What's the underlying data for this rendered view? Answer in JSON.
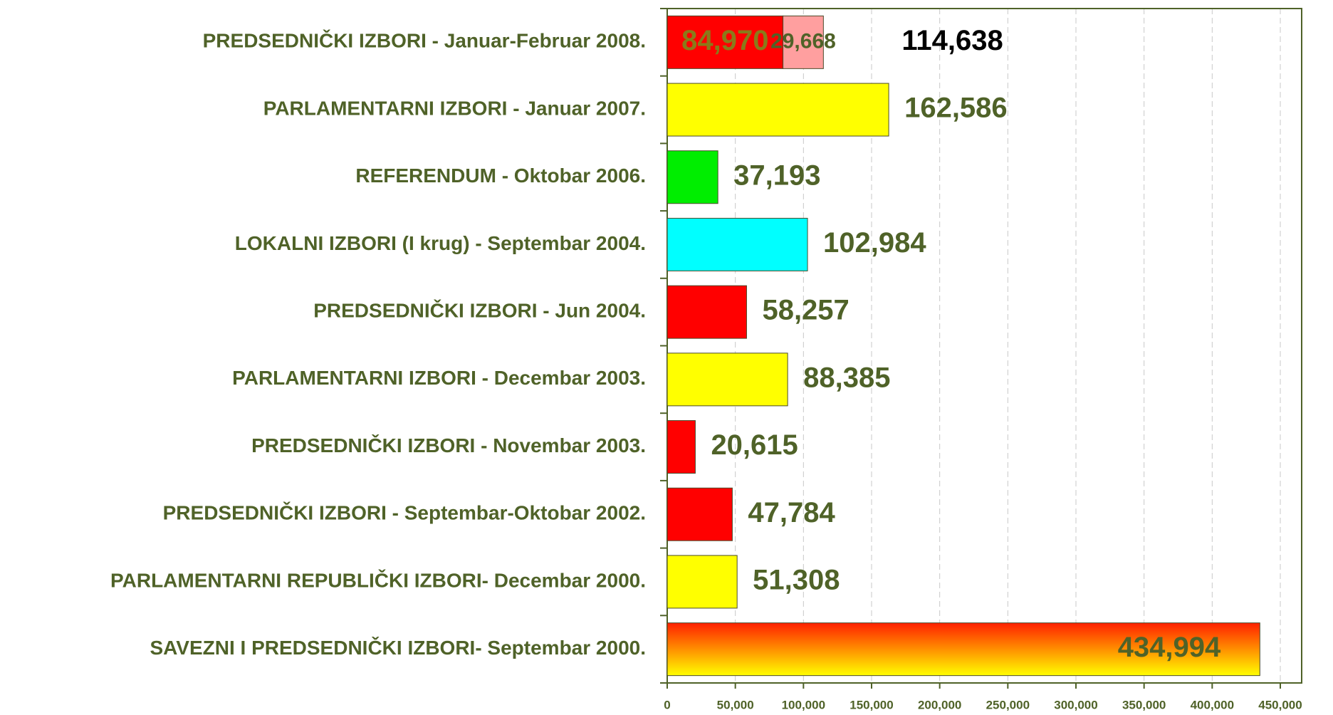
{
  "chart_data": {
    "type": "bar",
    "orientation": "horizontal",
    "stacked": true,
    "categories": [
      "PREDSEDNIČKI IZBORI - Januar-Februar 2008.",
      "PARLAMENTARNI IZBORI - Januar 2007.",
      "REFERENDUM - Oktobar 2006.",
      "LOKALNI IZBORI (I krug) - Septembar 2004.",
      "PREDSEDNIČKI IZBORI - Jun 2004.",
      "PARLAMENTARNI IZBORI - Decembar 2003.",
      "PREDSEDNIČKI IZBORI - Novembar 2003.",
      "PREDSEDNIČKI IZBORI - Septembar-Oktobar 2002.",
      "PARLAMENTARNI REPUBLIČKI IZBORI- Decembar 2000.",
      "SAVEZNI I PREDSEDNIČKI IZBORI- Septembar 2000."
    ],
    "series": [
      {
        "values": [
          84970,
          162586,
          37193,
          102984,
          58257,
          88385,
          20615,
          47784,
          51308,
          434994
        ],
        "value_labels": [
          "84,970",
          "162,586",
          "37,193",
          "102,984",
          "58,257",
          "88,385",
          "20,615",
          "47,784",
          "51,308",
          "434,994"
        ],
        "colors": [
          "#ff0000",
          "#ffff00",
          "#00ee00",
          "#00ffff",
          "#ff0000",
          "#ffff00",
          "#ff0000",
          "#ff0000",
          "#ffff00",
          [
            "#ff2000",
            "#ffff00"
          ]
        ]
      },
      {
        "values": [
          29668,
          null,
          null,
          null,
          null,
          null,
          null,
          null,
          null,
          null
        ],
        "value_labels": [
          "29,668",
          null,
          null,
          null,
          null,
          null,
          null,
          null,
          null,
          null
        ],
        "color": "#ff9f9f"
      }
    ],
    "totals": [
      114638,
      null,
      null,
      null,
      null,
      null,
      null,
      null,
      null,
      null
    ],
    "total_labels": [
      "114,638",
      null,
      null,
      null,
      null,
      null,
      null,
      null,
      null,
      null
    ],
    "xlim": [
      0,
      450000
    ],
    "xticks": [
      0,
      {
        "value": 50000,
        "label": "50,000"
      },
      {
        "value": 100000,
        "label": "100,000"
      },
      {
        "value": 150000,
        "label": "150,000"
      },
      {
        "value": 200000,
        "label": "200,000"
      },
      {
        "value": 250000,
        "label": "250,000"
      },
      {
        "value": 300000,
        "label": "300,000"
      },
      {
        "value": 350000,
        "label": "350,000"
      },
      {
        "value": 400000,
        "label": "400,000"
      },
      {
        "value": 450000,
        "label": "450,000"
      }
    ],
    "grid": true
  }
}
